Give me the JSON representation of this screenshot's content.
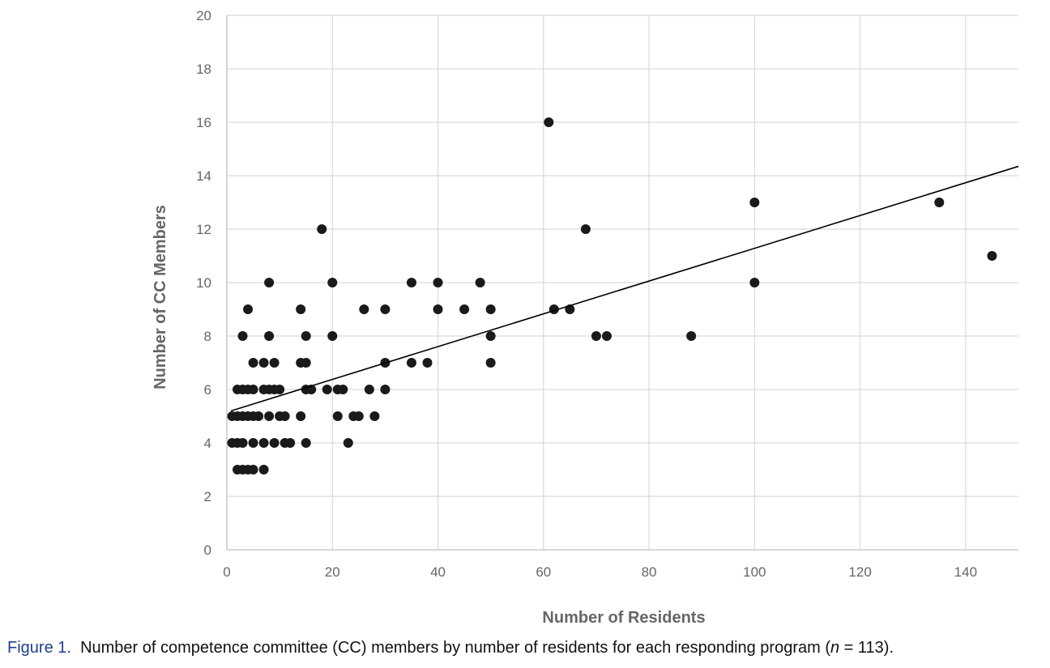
{
  "chart_data": {
    "type": "scatter",
    "title": "",
    "xlabel": "Number of Residents",
    "ylabel": "Number of CC Members",
    "xlim": [
      0,
      150
    ],
    "ylim": [
      0,
      20
    ],
    "x_ticks": [
      0,
      20,
      40,
      60,
      80,
      100,
      120,
      140
    ],
    "y_ticks": [
      0,
      2,
      4,
      6,
      8,
      10,
      12,
      14,
      16,
      18,
      20
    ],
    "grid": true,
    "points": [
      [
        1,
        5
      ],
      [
        1,
        4
      ],
      [
        2,
        6
      ],
      [
        2,
        5
      ],
      [
        2,
        4
      ],
      [
        2,
        3
      ],
      [
        3,
        8
      ],
      [
        3,
        6
      ],
      [
        3,
        5
      ],
      [
        3,
        4
      ],
      [
        3,
        3
      ],
      [
        4,
        9
      ],
      [
        4,
        6
      ],
      [
        4,
        5
      ],
      [
        4,
        3
      ],
      [
        5,
        7
      ],
      [
        5,
        6
      ],
      [
        5,
        5
      ],
      [
        5,
        4
      ],
      [
        5,
        3
      ],
      [
        6,
        5
      ],
      [
        7,
        7
      ],
      [
        7,
        6
      ],
      [
        7,
        4
      ],
      [
        7,
        3
      ],
      [
        8,
        10
      ],
      [
        8,
        8
      ],
      [
        8,
        6
      ],
      [
        8,
        5
      ],
      [
        9,
        7
      ],
      [
        9,
        6
      ],
      [
        9,
        4
      ],
      [
        10,
        6
      ],
      [
        10,
        5
      ],
      [
        11,
        5
      ],
      [
        11,
        4
      ],
      [
        12,
        4
      ],
      [
        14,
        9
      ],
      [
        14,
        7
      ],
      [
        14,
        5
      ],
      [
        15,
        8
      ],
      [
        15,
        7
      ],
      [
        15,
        6
      ],
      [
        15,
        4
      ],
      [
        16,
        6
      ],
      [
        18,
        12
      ],
      [
        19,
        6
      ],
      [
        20,
        10
      ],
      [
        20,
        8
      ],
      [
        21,
        6
      ],
      [
        21,
        5
      ],
      [
        22,
        6
      ],
      [
        23,
        4
      ],
      [
        24,
        5
      ],
      [
        25,
        5
      ],
      [
        26,
        9
      ],
      [
        27,
        6
      ],
      [
        28,
        5
      ],
      [
        30,
        9
      ],
      [
        30,
        7
      ],
      [
        30,
        6
      ],
      [
        35,
        10
      ],
      [
        35,
        7
      ],
      [
        38,
        7
      ],
      [
        40,
        10
      ],
      [
        40,
        9
      ],
      [
        45,
        9
      ],
      [
        48,
        10
      ],
      [
        50,
        9
      ],
      [
        50,
        8
      ],
      [
        50,
        7
      ],
      [
        61,
        16
      ],
      [
        62,
        9
      ],
      [
        65,
        9
      ],
      [
        68,
        12
      ],
      [
        70,
        8
      ],
      [
        72,
        8
      ],
      [
        88,
        8
      ],
      [
        100,
        13
      ],
      [
        100,
        10
      ],
      [
        135,
        13
      ],
      [
        145,
        11
      ]
    ],
    "trendline": {
      "type": "linear",
      "from": [
        0,
        5.15
      ],
      "to": [
        150,
        14.35
      ]
    }
  },
  "caption": {
    "figure_label": "Figure 1.",
    "text_before_n": "Number of competence committee (CC) members by number of residents for each responding program (",
    "n_symbol": "n",
    "text_after_n": " = 113)."
  }
}
